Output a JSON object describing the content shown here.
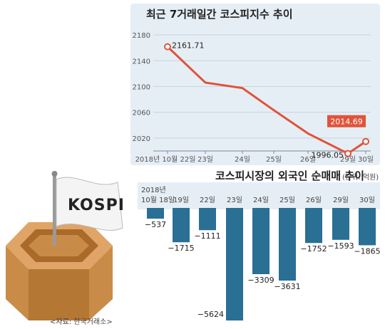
{
  "source": "<자료: 한국거래소>",
  "flag_label": "KOSPI",
  "colors": {
    "panel_bg": "#e6eef5",
    "line": "#e0533a",
    "bar": "#2a6f94",
    "highlight_box": "#e0533a"
  },
  "chart_data": [
    {
      "type": "line",
      "title": "최근 7거래일간 코스피지수 추이",
      "categories": [
        "2018년 10월 22일",
        "23일",
        "24일",
        "25일",
        "26일",
        "29일",
        "30일"
      ],
      "values": [
        2161.71,
        2106.1,
        2097.58,
        2063.3,
        2027.15,
        1996.05,
        2014.69
      ],
      "y_ticks": [
        "2180",
        "2140",
        "2100",
        "2060",
        "2020"
      ],
      "ylim": [
        2000,
        2190
      ],
      "grid": "horizontal",
      "annotations": [
        {
          "index": 0,
          "text": "2161.71",
          "style": "plain"
        },
        {
          "index": 5,
          "text": "1996.05",
          "style": "plain"
        },
        {
          "index": 6,
          "text": "2014.69",
          "style": "boxed"
        }
      ]
    },
    {
      "type": "bar",
      "title": "코스피시장의 외국인 순매매 추이",
      "unit_note": "(단위: 억원)",
      "year_label": "2018년",
      "categories": [
        "10월 18일",
        "19일",
        "22일",
        "23일",
        "24일",
        "25일",
        "26일",
        "29일",
        "30일"
      ],
      "values": [
        -537,
        -1715,
        -1111,
        -5624,
        -3309,
        -3631,
        -1752,
        -1593,
        -1865
      ],
      "value_labels": [
        "−537",
        "−1715",
        "−1111",
        "−5624",
        "−3309",
        "−3631",
        "−1752",
        "−1593",
        "−1865"
      ],
      "ylim": [
        -5800,
        0
      ]
    }
  ]
}
